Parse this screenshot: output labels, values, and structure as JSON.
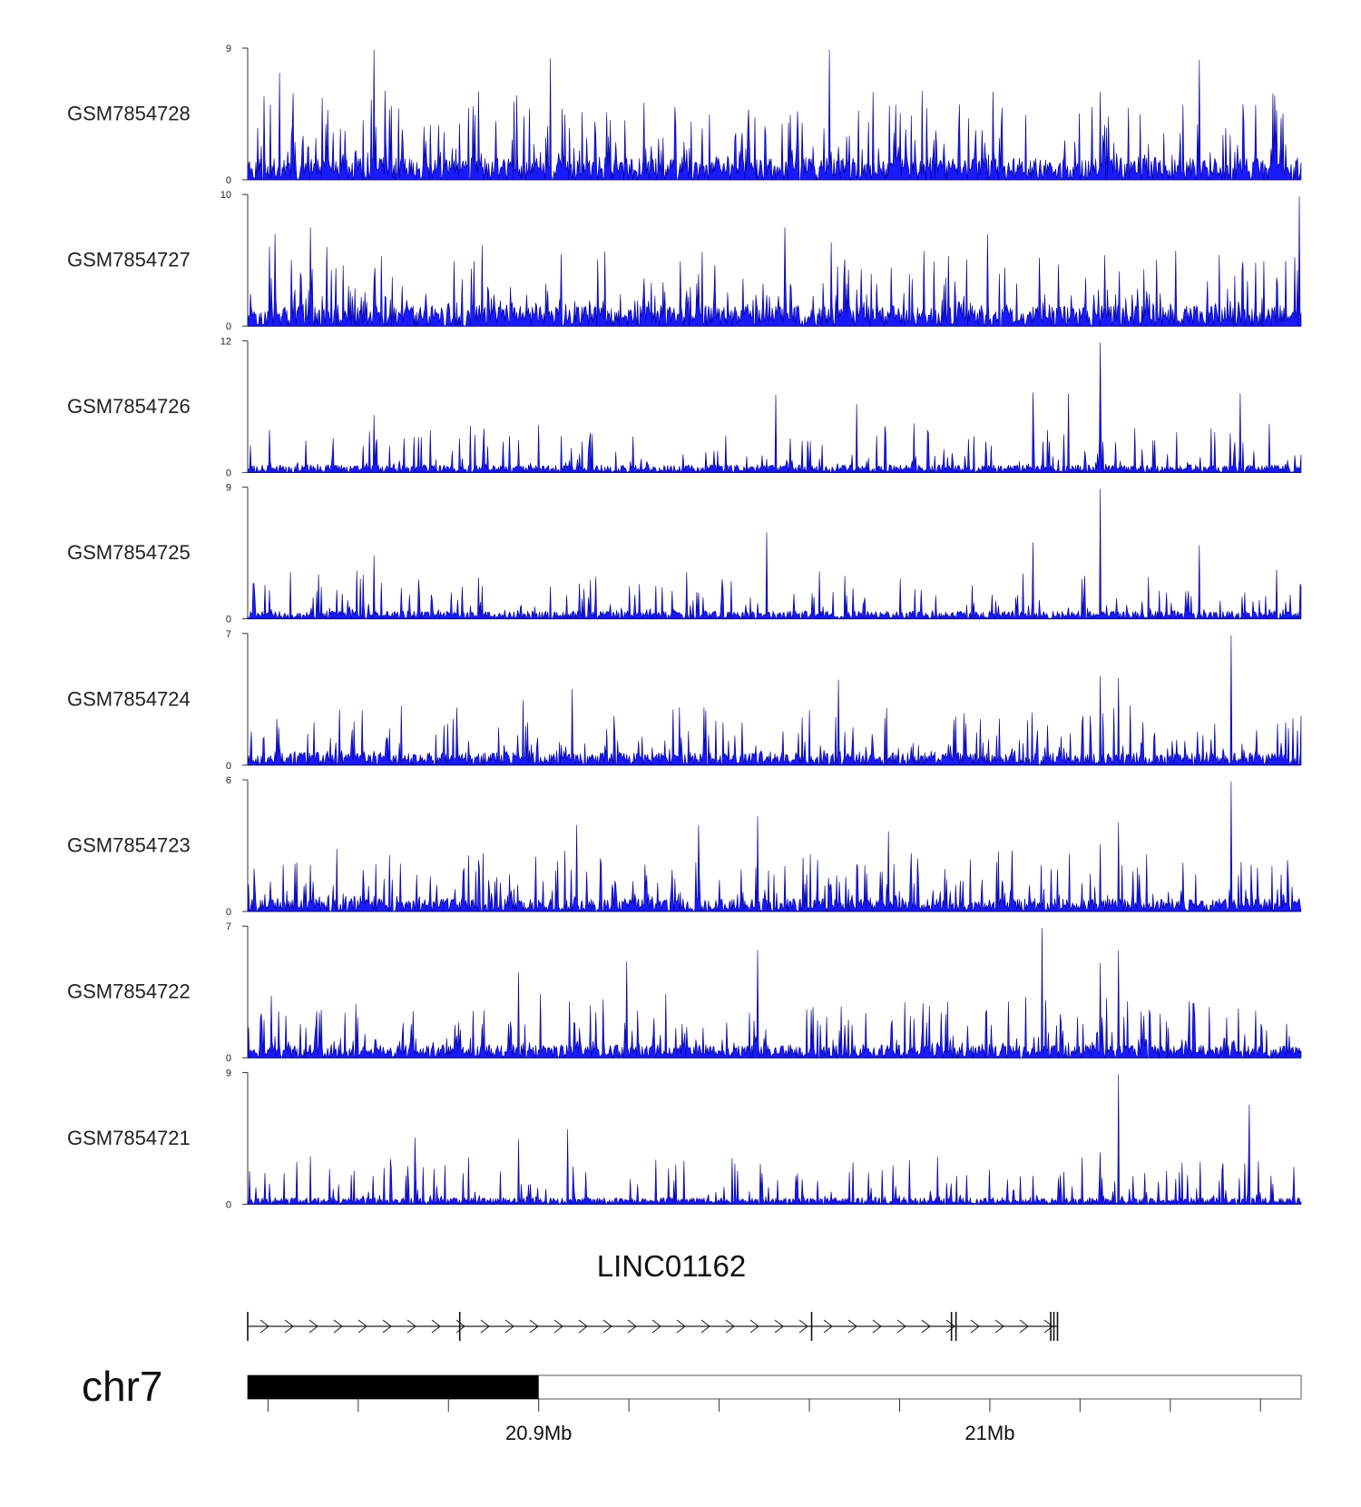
{
  "chart_data": {
    "type": "area",
    "title": "",
    "x_unit": "Mb",
    "x_range": [
      20.8445,
      21.078
    ],
    "color": "#1a1aff",
    "stroke_color": "#00008b",
    "tracks": [
      {
        "name": "GSM7854728",
        "ymax": 9,
        "ymin": 0,
        "seed": 11,
        "base": 0.17,
        "spike_rate": 0.33,
        "spike_scale": 0.55,
        "peaks": [
          [
            20.8725,
            9.0
          ],
          [
            20.9115,
            8.4
          ],
          [
            20.9735,
            9.0
          ],
          [
            21.0555,
            8.3
          ],
          [
            20.8515,
            7.4
          ]
        ]
      },
      {
        "name": "GSM7854727",
        "ymax": 10,
        "ymin": 0,
        "seed": 23,
        "base": 0.16,
        "spike_rate": 0.3,
        "spike_scale": 0.5,
        "peaks": [
          [
            20.8585,
            7.6
          ],
          [
            20.9635,
            7.6
          ],
          [
            21.0775,
            10.0
          ],
          [
            20.8505,
            7.1
          ],
          [
            21.0085,
            7.1
          ]
        ]
      },
      {
        "name": "GSM7854726",
        "ymax": 12,
        "ymin": 0,
        "seed": 37,
        "base": 0.06,
        "spike_rate": 0.2,
        "spike_scale": 0.32,
        "peaks": [
          [
            21.0335,
            12.0
          ],
          [
            21.0185,
            7.4
          ],
          [
            21.0265,
            7.3
          ],
          [
            20.9615,
            7.2
          ],
          [
            21.0645,
            7.3
          ],
          [
            20.9795,
            6.3
          ],
          [
            20.8725,
            5.3
          ]
        ]
      },
      {
        "name": "GSM7854725",
        "ymax": 9,
        "ymin": 0,
        "seed": 41,
        "base": 0.06,
        "spike_rate": 0.2,
        "spike_scale": 0.33,
        "peaks": [
          [
            21.0335,
            9.0
          ],
          [
            20.9595,
            6.0
          ],
          [
            21.0185,
            5.3
          ],
          [
            21.0555,
            5.1
          ],
          [
            20.8725,
            4.4
          ]
        ]
      },
      {
        "name": "GSM7854724",
        "ymax": 7,
        "ymin": 0,
        "seed": 53,
        "base": 0.1,
        "spike_rate": 0.24,
        "spike_scale": 0.38,
        "peaks": [
          [
            21.0625,
            7.0
          ],
          [
            21.0335,
            4.8
          ],
          [
            21.0375,
            4.7
          ],
          [
            20.9755,
            4.6
          ],
          [
            20.9165,
            4.1
          ],
          [
            20.9055,
            3.5
          ]
        ]
      },
      {
        "name": "GSM7854723",
        "ymax": 6,
        "ymin": 0,
        "seed": 67,
        "base": 0.1,
        "spike_rate": 0.25,
        "spike_scale": 0.4,
        "peaks": [
          [
            21.0625,
            6.0
          ],
          [
            21.0375,
            4.1
          ],
          [
            20.9575,
            4.4
          ],
          [
            20.9445,
            4.0
          ],
          [
            20.9175,
            4.0
          ],
          [
            21.0335,
            3.1
          ],
          [
            20.9865,
            3.7
          ]
        ]
      },
      {
        "name": "GSM7854722",
        "ymax": 7,
        "ymin": 0,
        "seed": 79,
        "base": 0.1,
        "spike_rate": 0.25,
        "spike_scale": 0.4,
        "peaks": [
          [
            21.0205,
            7.0
          ],
          [
            21.0375,
            5.8
          ],
          [
            21.0335,
            5.1
          ],
          [
            20.9575,
            5.8
          ],
          [
            20.9285,
            5.2
          ],
          [
            20.9045,
            4.6
          ]
        ]
      },
      {
        "name": "GSM7854721",
        "ymax": 9,
        "ymin": 0,
        "seed": 97,
        "base": 0.05,
        "spike_rate": 0.2,
        "spike_scale": 0.34,
        "peaks": [
          [
            21.0375,
            9.0
          ],
          [
            21.0665,
            6.9
          ],
          [
            20.9155,
            5.2
          ],
          [
            21.0335,
            3.6
          ],
          [
            20.9045,
            4.5
          ],
          [
            20.8815,
            4.6
          ]
        ]
      }
    ],
    "gene": {
      "name": "LINC01162",
      "strand": "+",
      "exons": [
        20.8445,
        20.8915,
        20.9695,
        21.0005,
        21.0015,
        21.0225,
        21.0232,
        21.024
      ],
      "start": 20.8445,
      "end": 21.024
    },
    "ideogram": {
      "chromosome": "chr7",
      "band_start": 20.8445,
      "band_end": 20.909,
      "ticks": [
        20.849,
        20.869,
        20.889,
        20.909,
        20.929,
        20.949,
        20.969,
        20.989,
        21.009,
        21.029,
        21.049,
        21.069
      ],
      "tick_labels": [
        {
          "x": 20.909,
          "label": "20.9Mb"
        },
        {
          "x": 21.009,
          "label": "21Mb"
        }
      ]
    }
  }
}
